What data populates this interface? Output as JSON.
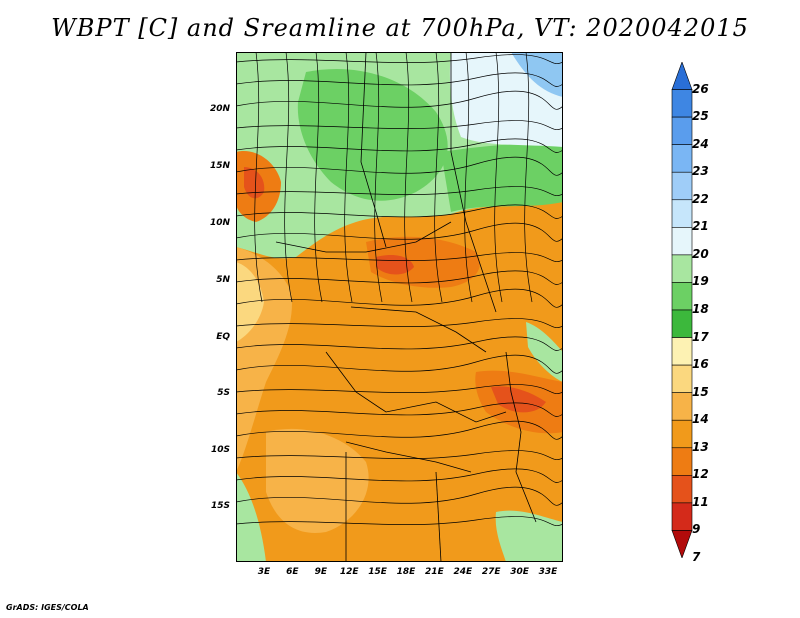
{
  "title": "WBPT [C] and Sreamline at 700hPa, VT: 2020042015",
  "credit": "GrADS: IGES/COLA",
  "lat_labels": [
    "20N",
    "15N",
    "10N",
    "5N",
    "EQ",
    "5S",
    "10S",
    "15S"
  ],
  "lon_labels": [
    "3E",
    "6E",
    "9E",
    "12E",
    "15E",
    "18E",
    "21E",
    "24E",
    "27E",
    "30E",
    "33E"
  ],
  "colorbar": {
    "labels": [
      "7",
      "9",
      "11",
      "12",
      "13",
      "14",
      "15",
      "16",
      "17",
      "18",
      "19",
      "20",
      "21",
      "22",
      "23",
      "24",
      "25",
      "26"
    ],
    "colors": [
      "#2a6fd6",
      "#3e86e3",
      "#5a9ded",
      "#7ab6f4",
      "#9fcdf8",
      "#c6e6fb",
      "#e6f6fb",
      "#a8e6a0",
      "#6cd064",
      "#3cb83c",
      "#fdf2b3",
      "#fbd87f",
      "#f7b348",
      "#f19a1b",
      "#ee7c13",
      "#e5521b",
      "#d42a1a",
      "#b20b0b"
    ]
  },
  "map": {
    "field_colors": {
      "blue": "#8fc7f2",
      "pale_blue": "#e6f6fb",
      "light_green": "#a8e6a0",
      "green": "#6cd064",
      "dark_green": "#3cb83c",
      "pale_yellow": "#fdf2b3",
      "yellow": "#fbd87f",
      "light_orange": "#f7b348",
      "orange": "#f19a1b",
      "dark_orange": "#ee7c13",
      "red_orange": "#e5521b"
    }
  }
}
